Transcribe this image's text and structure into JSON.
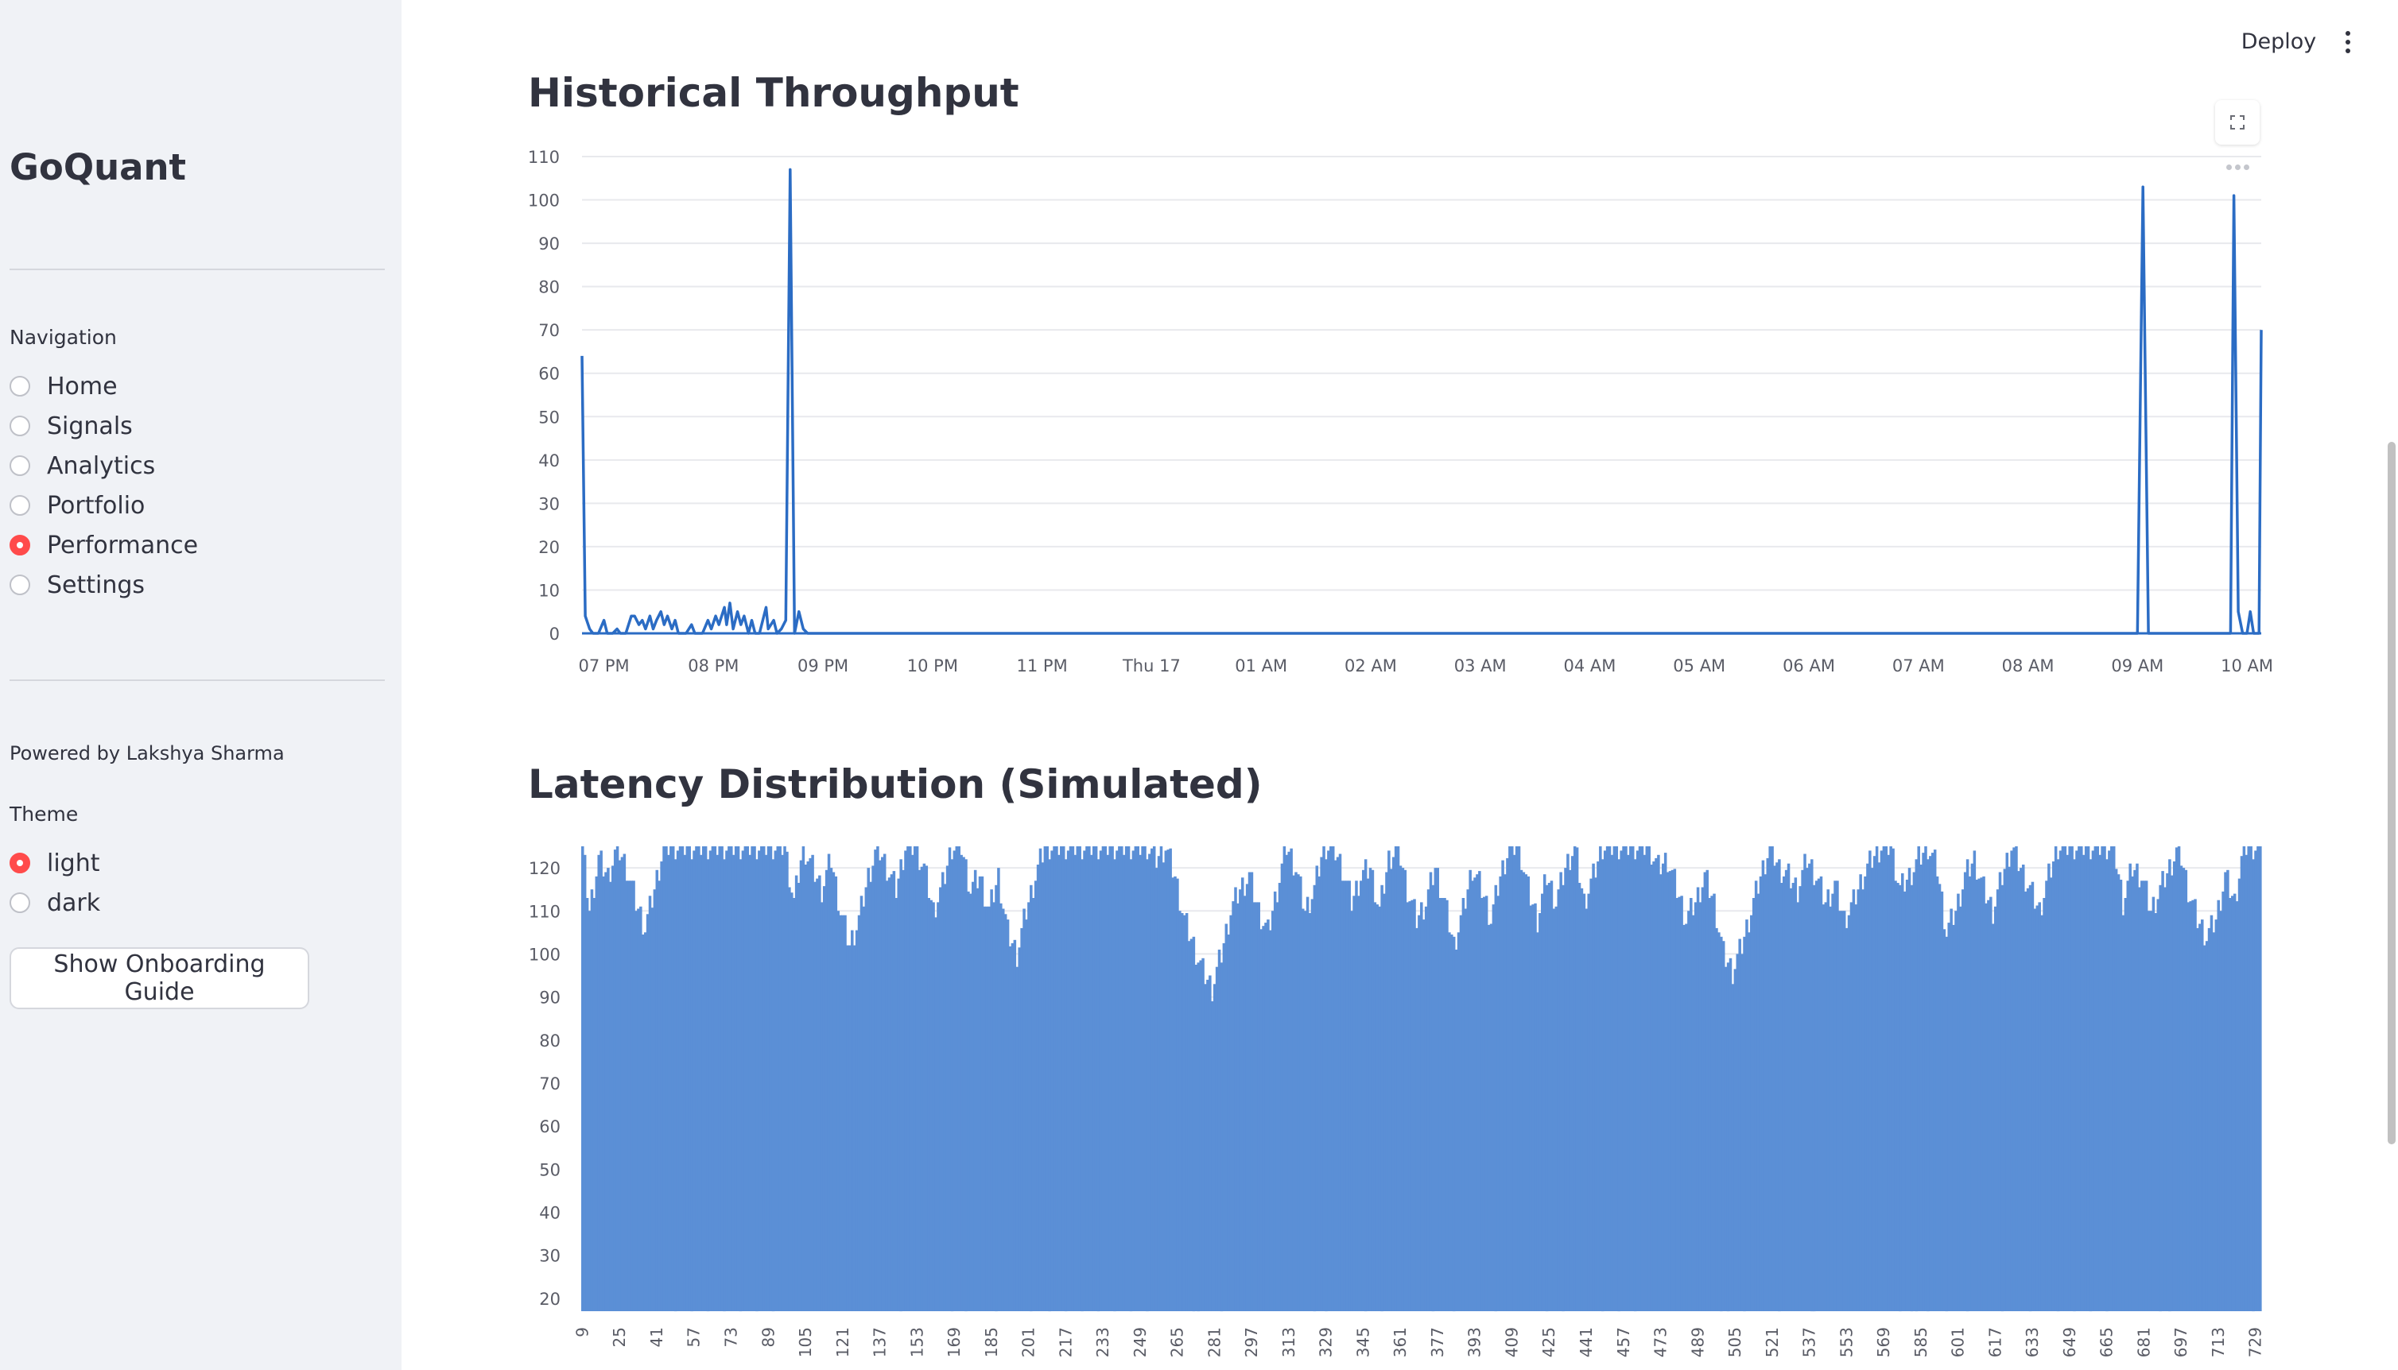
{
  "sidebar": {
    "brand": "GoQuant",
    "nav_label": "Navigation",
    "nav_items": [
      {
        "label": "Home",
        "selected": false
      },
      {
        "label": "Signals",
        "selected": false
      },
      {
        "label": "Analytics",
        "selected": false
      },
      {
        "label": "Portfolio",
        "selected": false
      },
      {
        "label": "Performance",
        "selected": true
      },
      {
        "label": "Settings",
        "selected": false
      }
    ],
    "powered_by": "Powered by Lakshya Sharma",
    "theme_label": "Theme",
    "theme_options": [
      {
        "label": "light",
        "selected": true
      },
      {
        "label": "dark",
        "selected": false
      }
    ],
    "onboarding_button": "Show Onboarding Guide"
  },
  "header": {
    "deploy_label": "Deploy",
    "menu_icon": "kebab-menu-icon"
  },
  "colors": {
    "accent": "#ff4b4b",
    "series": "#2b6cc4",
    "bars": "#5b8fd6",
    "sidebar_bg": "#f0f2f6"
  },
  "chart_data": [
    {
      "type": "line",
      "title": "Historical Throughput",
      "xlabel": "",
      "ylabel": "",
      "x_ticks": [
        "07 PM",
        "08 PM",
        "09 PM",
        "10 PM",
        "11 PM",
        "Thu 17",
        "01 AM",
        "02 AM",
        "03 AM",
        "04 AM",
        "05 AM",
        "06 AM",
        "07 AM",
        "08 AM",
        "09 AM",
        "10 AM"
      ],
      "y_ticks": [
        0,
        10,
        20,
        30,
        40,
        50,
        60,
        70,
        80,
        90,
        100,
        110
      ],
      "ylim": [
        0,
        110
      ],
      "xlim_hours": [
        18.8,
        34.13
      ],
      "grid": true,
      "series": [
        {
          "points": [
            [
              18.8,
              64
            ],
            [
              18.83,
              4
            ],
            [
              18.87,
              1
            ],
            [
              18.9,
              0
            ],
            [
              18.95,
              0
            ],
            [
              19.0,
              3
            ],
            [
              19.03,
              0
            ],
            [
              19.08,
              0
            ],
            [
              19.12,
              1
            ],
            [
              19.15,
              0
            ],
            [
              19.2,
              0
            ],
            [
              19.25,
              4
            ],
            [
              19.28,
              4
            ],
            [
              19.32,
              2
            ],
            [
              19.35,
              3
            ],
            [
              19.38,
              1
            ],
            [
              19.42,
              4
            ],
            [
              19.45,
              1
            ],
            [
              19.48,
              3
            ],
            [
              19.52,
              5
            ],
            [
              19.55,
              2
            ],
            [
              19.58,
              4
            ],
            [
              19.62,
              1
            ],
            [
              19.65,
              3
            ],
            [
              19.68,
              0
            ],
            [
              19.75,
              0
            ],
            [
              19.8,
              2
            ],
            [
              19.83,
              0
            ],
            [
              19.9,
              0
            ],
            [
              19.95,
              3
            ],
            [
              19.98,
              1
            ],
            [
              20.02,
              4
            ],
            [
              20.05,
              2
            ],
            [
              20.1,
              6
            ],
            [
              20.12,
              2
            ],
            [
              20.15,
              7
            ],
            [
              20.18,
              1
            ],
            [
              20.22,
              5
            ],
            [
              20.25,
              2
            ],
            [
              20.28,
              4
            ],
            [
              20.32,
              0
            ],
            [
              20.35,
              3
            ],
            [
              20.38,
              0
            ],
            [
              20.42,
              0
            ],
            [
              20.48,
              6
            ],
            [
              20.5,
              1
            ],
            [
              20.55,
              3
            ],
            [
              20.58,
              0
            ],
            [
              20.62,
              1
            ],
            [
              20.66,
              3
            ],
            [
              20.7,
              107
            ],
            [
              20.74,
              0
            ],
            [
              20.78,
              5
            ],
            [
              20.82,
              1
            ],
            [
              20.86,
              0
            ],
            [
              33.0,
              0
            ],
            [
              33.05,
              103
            ],
            [
              33.1,
              0
            ],
            [
              33.85,
              0
            ],
            [
              33.88,
              101
            ],
            [
              33.92,
              5
            ],
            [
              33.96,
              0
            ],
            [
              34.0,
              0
            ],
            [
              34.03,
              5
            ],
            [
              34.06,
              0
            ],
            [
              34.11,
              0
            ],
            [
              34.13,
              70
            ]
          ]
        }
      ]
    },
    {
      "type": "bar",
      "title": "Latency Distribution (Simulated)",
      "xlabel": "",
      "ylabel": "",
      "x_ticks": [
        9,
        25,
        41,
        57,
        73,
        89,
        105,
        121,
        137,
        153,
        169,
        185,
        201,
        217,
        233,
        249,
        265,
        281,
        297,
        313,
        329,
        345,
        361,
        377,
        393,
        409,
        425,
        441,
        457,
        473,
        489,
        505,
        521,
        537,
        553,
        569,
        585,
        601,
        617,
        633,
        649,
        665,
        681,
        697,
        713,
        729
      ],
      "y_ticks": [
        20,
        30,
        40,
        50,
        60,
        70,
        80,
        90,
        100,
        110,
        120
      ],
      "ylim": [
        17,
        125
      ],
      "category_range": [
        9,
        732
      ],
      "grid": true,
      "series": [
        {
          "name": "",
          "profile": [
            [
              9,
              125
            ],
            [
              12,
              110
            ],
            [
              16,
              122
            ],
            [
              20,
              118
            ],
            [
              24,
              125
            ],
            [
              28,
              120
            ],
            [
              32,
              112
            ],
            [
              36,
              106
            ],
            [
              40,
              115
            ],
            [
              44,
              125
            ],
            [
              48,
              125
            ],
            [
              52,
              125
            ],
            [
              56,
              125
            ],
            [
              60,
              125
            ],
            [
              64,
              125
            ],
            [
              68,
              125
            ],
            [
              72,
              125
            ],
            [
              76,
              125
            ],
            [
              80,
              125
            ],
            [
              84,
              125
            ],
            [
              88,
              125
            ],
            [
              92,
              125
            ],
            [
              96,
              125
            ],
            [
              100,
              112
            ],
            [
              104,
              125
            ],
            [
              108,
              120
            ],
            [
              112,
              115
            ],
            [
              116,
              122
            ],
            [
              120,
              110
            ],
            [
              124,
              102
            ],
            [
              128,
              108
            ],
            [
              132,
              118
            ],
            [
              136,
              125
            ],
            [
              140,
              120
            ],
            [
              144,
              115
            ],
            [
              148,
              125
            ],
            [
              152,
              125
            ],
            [
              156,
              120
            ],
            [
              160,
              110
            ],
            [
              164,
              116
            ],
            [
              168,
              125
            ],
            [
              172,
              125
            ],
            [
              176,
              115
            ],
            [
              180,
              118
            ],
            [
              184,
              110
            ],
            [
              188,
              118
            ],
            [
              192,
              105
            ],
            [
              196,
              100
            ],
            [
              200,
              110
            ],
            [
              204,
              118
            ],
            [
              208,
              125
            ],
            [
              212,
              125
            ],
            [
              216,
              125
            ],
            [
              220,
              125
            ],
            [
              224,
              125
            ],
            [
              228,
              125
            ],
            [
              232,
              125
            ],
            [
              236,
              125
            ],
            [
              240,
              125
            ],
            [
              244,
              125
            ],
            [
              248,
              125
            ],
            [
              252,
              125
            ],
            [
              256,
              122
            ],
            [
              260,
              125
            ],
            [
              264,
              118
            ],
            [
              268,
              108
            ],
            [
              272,
              102
            ],
            [
              276,
              96
            ],
            [
              280,
              92
            ],
            [
              284,
              100
            ],
            [
              288,
              110
            ],
            [
              292,
              115
            ],
            [
              296,
              118
            ],
            [
              300,
              110
            ],
            [
              304,
              105
            ],
            [
              308,
              115
            ],
            [
              312,
              125
            ],
            [
              316,
              120
            ],
            [
              320,
              110
            ],
            [
              324,
              115
            ],
            [
              328,
              125
            ],
            [
              332,
              125
            ],
            [
              336,
              120
            ],
            [
              340,
              112
            ],
            [
              344,
              118
            ],
            [
              348,
              120
            ],
            [
              352,
              110
            ],
            [
              356,
              122
            ],
            [
              360,
              125
            ],
            [
              364,
              115
            ],
            [
              368,
              108
            ],
            [
              372,
              112
            ],
            [
              376,
              120
            ],
            [
              380,
              112
            ],
            [
              384,
              102
            ],
            [
              388,
              110
            ],
            [
              392,
              120
            ],
            [
              396,
              115
            ],
            [
              400,
              108
            ],
            [
              404,
              118
            ],
            [
              408,
              125
            ],
            [
              412,
              125
            ],
            [
              416,
              115
            ],
            [
              420,
              108
            ],
            [
              424,
              118
            ],
            [
              428,
              112
            ],
            [
              432,
              120
            ],
            [
              436,
              125
            ],
            [
              440,
              112
            ],
            [
              444,
              118
            ],
            [
              448,
              125
            ],
            [
              452,
              125
            ],
            [
              456,
              125
            ],
            [
              460,
              125
            ],
            [
              464,
              125
            ],
            [
              468,
              125
            ],
            [
              472,
              120
            ],
            [
              476,
              122
            ],
            [
              480,
              115
            ],
            [
              484,
              108
            ],
            [
              488,
              112
            ],
            [
              492,
              118
            ],
            [
              496,
              112
            ],
            [
              500,
              100
            ],
            [
              504,
              96
            ],
            [
              508,
              102
            ],
            [
              512,
              110
            ],
            [
              516,
              118
            ],
            [
              520,
              125
            ],
            [
              524,
              120
            ],
            [
              528,
              118
            ],
            [
              532,
              115
            ],
            [
              536,
              122
            ],
            [
              540,
              118
            ],
            [
              544,
              112
            ],
            [
              548,
              116
            ],
            [
              552,
              108
            ],
            [
              556,
              112
            ],
            [
              560,
              118
            ],
            [
              564,
              122
            ],
            [
              568,
              125
            ],
            [
              572,
              125
            ],
            [
              576,
              115
            ],
            [
              580,
              118
            ],
            [
              584,
              122
            ],
            [
              588,
              125
            ],
            [
              592,
              120
            ],
            [
              596,
              105
            ],
            [
              600,
              110
            ],
            [
              604,
              118
            ],
            [
              608,
              122
            ],
            [
              612,
              115
            ],
            [
              616,
              110
            ],
            [
              620,
              118
            ],
            [
              624,
              125
            ],
            [
              628,
              120
            ],
            [
              632,
              115
            ],
            [
              636,
              110
            ],
            [
              640,
              118
            ],
            [
              644,
              125
            ],
            [
              648,
              125
            ],
            [
              652,
              125
            ],
            [
              656,
              125
            ],
            [
              660,
              125
            ],
            [
              664,
              125
            ],
            [
              668,
              125
            ],
            [
              672,
              112
            ],
            [
              676,
              120
            ],
            [
              680,
              118
            ],
            [
              684,
              110
            ],
            [
              688,
              115
            ],
            [
              692,
              120
            ],
            [
              696,
              125
            ],
            [
              700,
              115
            ],
            [
              704,
              108
            ],
            [
              708,
              104
            ],
            [
              712,
              108
            ],
            [
              716,
              118
            ],
            [
              720,
              112
            ],
            [
              724,
              125
            ],
            [
              728,
              125
            ],
            [
              732,
              125
            ]
          ]
        }
      ]
    }
  ]
}
